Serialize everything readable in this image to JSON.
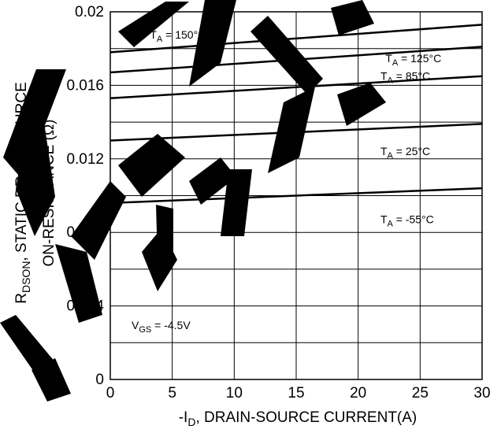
{
  "chart_data": {
    "type": "line",
    "title": "",
    "xlabel_prefix": "-I",
    "xlabel_sub": "D",
    "xlabel_rest": ", DRAIN-SOURCE CURRENT(A)",
    "ylabel_line1_prefix": "R",
    "ylabel_line1_sub": "DSON",
    "ylabel_line1_rest": ",  STATIC DRAIN-SOURCE",
    "ylabel_line2": "ON-RESISTANCE (Ω)",
    "xlim": [
      0,
      30
    ],
    "ylim": [
      0,
      0.02
    ],
    "x_ticks": [
      0,
      5,
      10,
      15,
      20,
      25,
      30
    ],
    "y_ticks": [
      0,
      0.004,
      0.008,
      0.012,
      0.016,
      0.02
    ],
    "y_tick_labels": [
      "0",
      "0.004",
      "0.008",
      "0.012",
      "0.016",
      "0.02"
    ],
    "grid": true,
    "x": [
      0,
      30
    ],
    "series": [
      {
        "name": "TA = 150°C",
        "values": [
          0.0178,
          0.0193
        ]
      },
      {
        "name": "TA = 125°C",
        "values": [
          0.0167,
          0.0181
        ]
      },
      {
        "name": "TA = 85°C",
        "values": [
          0.0153,
          0.0165
        ]
      },
      {
        "name": "TA = 25°C",
        "values": [
          0.013,
          0.0139
        ]
      },
      {
        "name": "TA = -55°C",
        "values": [
          0.0096,
          0.0104
        ]
      }
    ],
    "labels": [
      {
        "prefix": "T",
        "sub": "A",
        "rest": " = 150°C"
      },
      {
        "prefix": "T",
        "sub": "A",
        "rest": " = 125°C"
      },
      {
        "prefix": "T",
        "sub": "A",
        "rest": " = 85°C"
      },
      {
        "prefix": "T",
        "sub": "A",
        "rest": " = 25°C"
      },
      {
        "prefix": "T",
        "sub": "A",
        "rest": " = -55°C"
      }
    ],
    "condition": {
      "prefix": "V",
      "sub": "GS",
      "rest": " = -4.5V"
    }
  },
  "colors": {
    "line": "#000000",
    "grid": "#000000"
  }
}
